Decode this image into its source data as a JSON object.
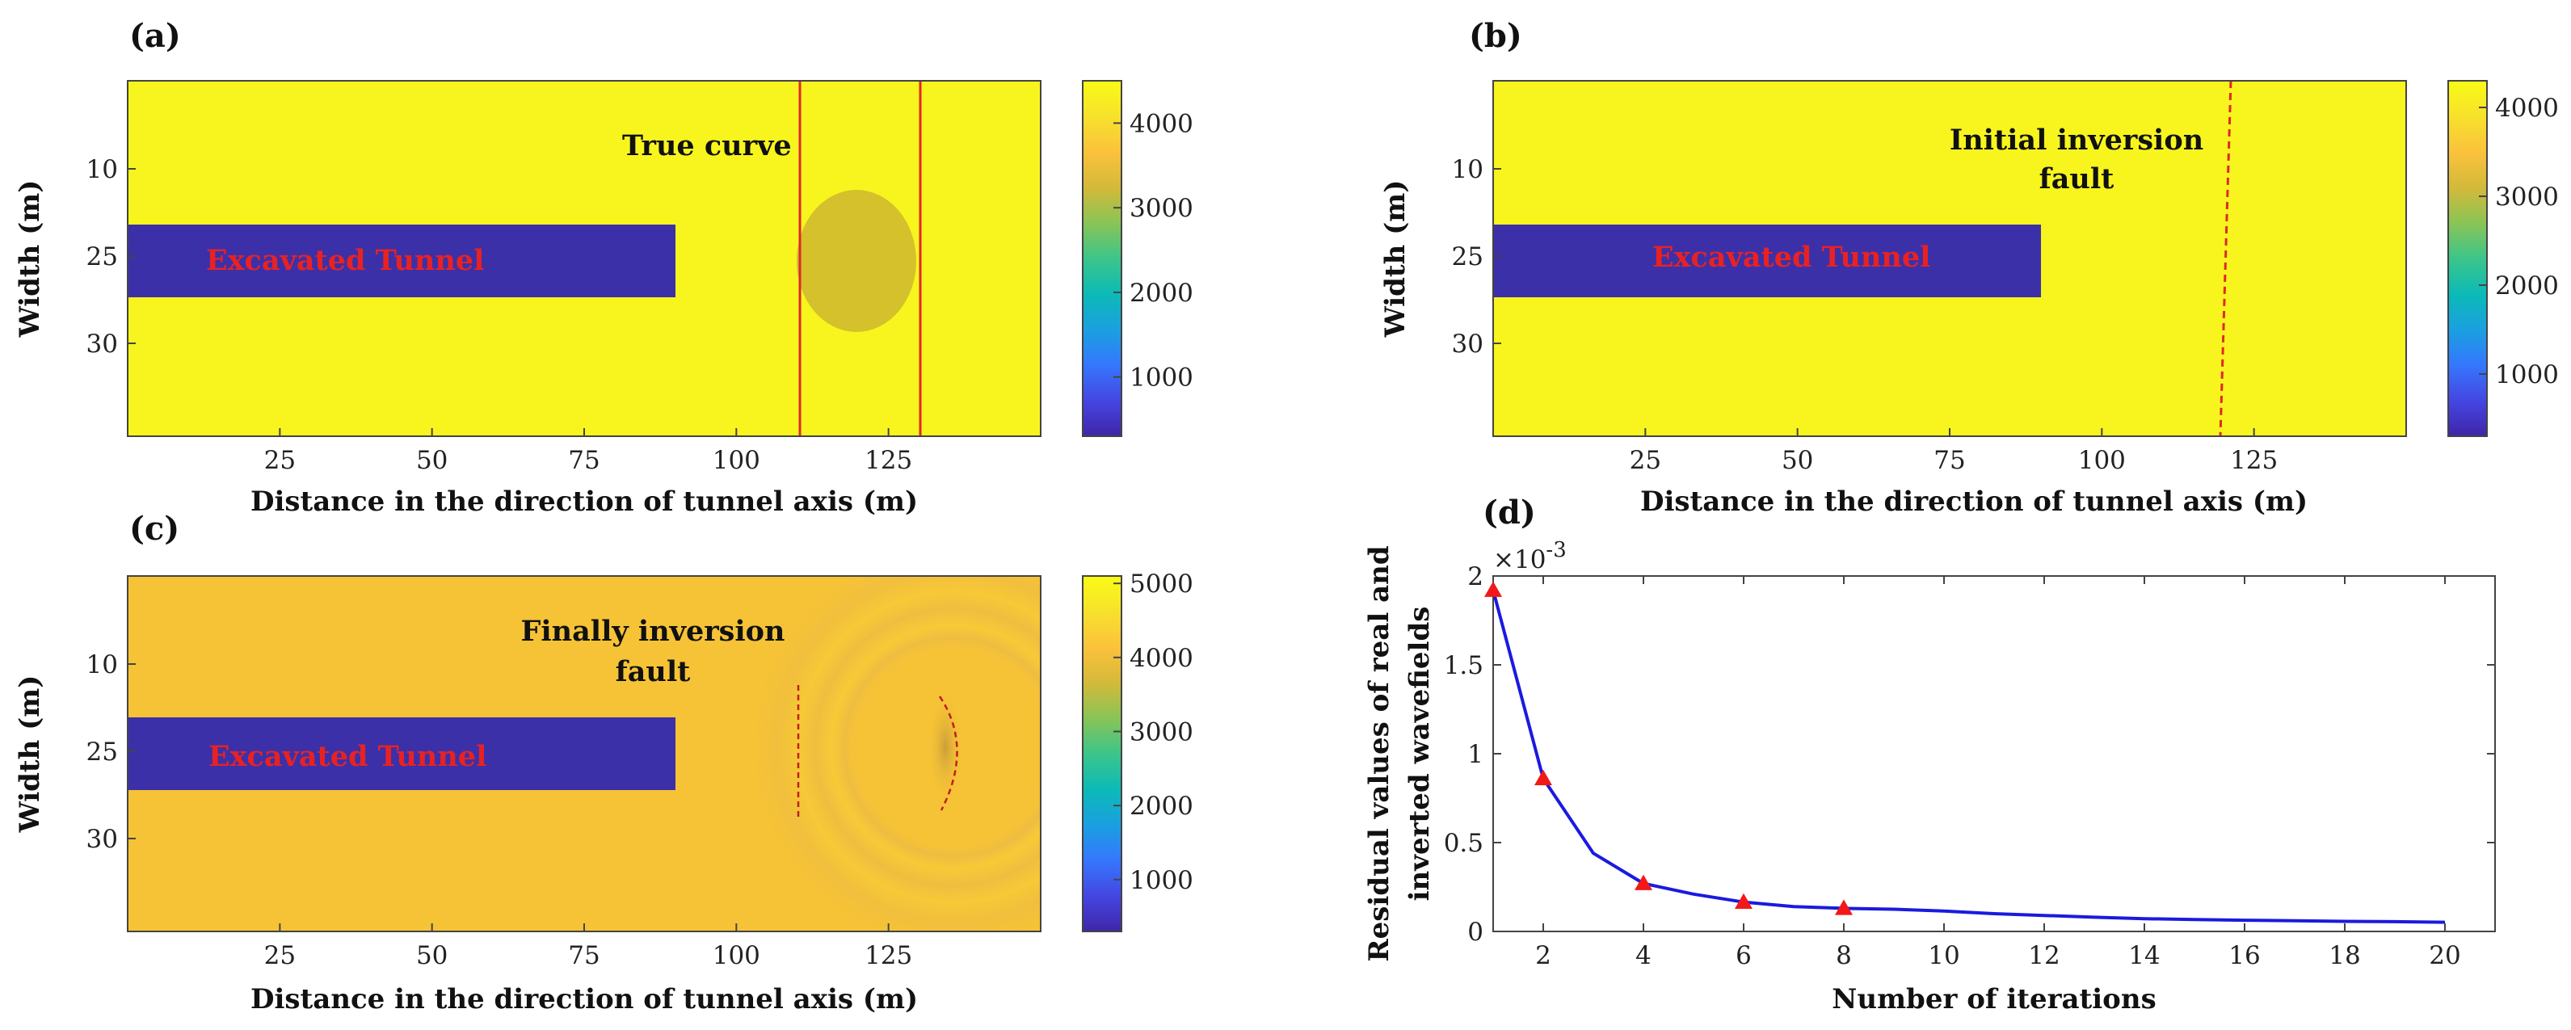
{
  "colors": {
    "rock": "#f7f51d",
    "rock_c": "#f6c336",
    "tunnel": "#3c30a8",
    "anomaly": "#d4c12c",
    "fault_line": "#e0282a",
    "curve": "#1a1adf",
    "marker": "#f21818",
    "tunnel_text": "#e82222",
    "colormap": [
      "#3e26a8",
      "#4546e2",
      "#3577fd",
      "#1aa0e0",
      "#0cbab6",
      "#3cc58a",
      "#8ac456",
      "#d4b93a",
      "#fbc23c",
      "#f7e12c",
      "#f9fb15"
    ]
  },
  "chart_data": [
    {
      "panel": "(a)",
      "type": "heatmap",
      "xlabel": "Distance in the direction of tunnel axis  (m)",
      "ylabel": "Width (m)",
      "xlim": [
        0,
        150
      ],
      "xticks": [
        "25",
        "50",
        "75",
        "100",
        "125"
      ],
      "yticks": [
        "10",
        "25",
        "30"
      ],
      "annotation": [
        "True curve"
      ],
      "tunnel_label": "Excavated Tunnel",
      "tunnel_length": 90,
      "fault_lines_x": [
        110.5,
        130.5
      ],
      "anomaly_center_x": 120,
      "colorbar": {
        "range": [
          300,
          4500
        ],
        "ticks": [
          "1000",
          "2000",
          "3000",
          "4000"
        ]
      }
    },
    {
      "panel": "(b)",
      "type": "heatmap",
      "xlabel": "Distance in the direction of tunnel axis  (m)",
      "ylabel": "Width (m)",
      "xlim": [
        0,
        150
      ],
      "xticks": [
        "25",
        "50",
        "75",
        "100",
        "125"
      ],
      "yticks": [
        "10",
        "25",
        "30"
      ],
      "annotation": [
        "Initial inversion",
        "fault"
      ],
      "tunnel_label": "Excavated Tunnel",
      "tunnel_length": 90,
      "fault_line_x": [
        122.5,
        120.8
      ],
      "colorbar": {
        "range": [
          300,
          4300
        ],
        "ticks": [
          "1000",
          "2000",
          "3000",
          "4000"
        ]
      }
    },
    {
      "panel": "(c)",
      "type": "heatmap",
      "xlabel": "Distance in the direction of tunnel axis  (m)",
      "ylabel": "Width (m)",
      "xlim": [
        0,
        150
      ],
      "xticks": [
        "25",
        "50",
        "75",
        "100",
        "125"
      ],
      "yticks": [
        "10",
        "25",
        "30"
      ],
      "annotation": [
        "Finally inversion",
        "fault"
      ],
      "tunnel_label": "Excavated Tunnel",
      "tunnel_length": 90,
      "fault_line_x": 110.5,
      "fault_curve_x": [
        134,
        137.5
      ],
      "colorbar": {
        "range": [
          300,
          5100
        ],
        "ticks": [
          "1000",
          "2000",
          "3000",
          "4000",
          "5000"
        ]
      }
    },
    {
      "panel": "(d)",
      "type": "line",
      "xlabel": "Number of iterations",
      "ylabel": [
        "Residual values of real and",
        "inverted wavefields"
      ],
      "exponent": "-3",
      "x": [
        1,
        2,
        3,
        4,
        5,
        6,
        7,
        8,
        9,
        10,
        11,
        12,
        13,
        14,
        15,
        16,
        17,
        18,
        19,
        20
      ],
      "y": [
        1.92,
        0.86,
        0.44,
        0.27,
        0.21,
        0.165,
        0.14,
        0.13,
        0.125,
        0.115,
        0.1,
        0.09,
        0.08,
        0.072,
        0.067,
        0.063,
        0.06,
        0.057,
        0.055,
        0.052
      ],
      "markers_x": [
        1,
        2,
        4,
        6,
        8
      ],
      "xlim": [
        1,
        21
      ],
      "ylim": [
        0,
        2
      ],
      "xticks": [
        "2",
        "4",
        "6",
        "8",
        "10",
        "12",
        "14",
        "16",
        "18",
        "20"
      ],
      "yticks": [
        "0",
        "0.5",
        "1",
        "1.5",
        "2"
      ]
    }
  ]
}
